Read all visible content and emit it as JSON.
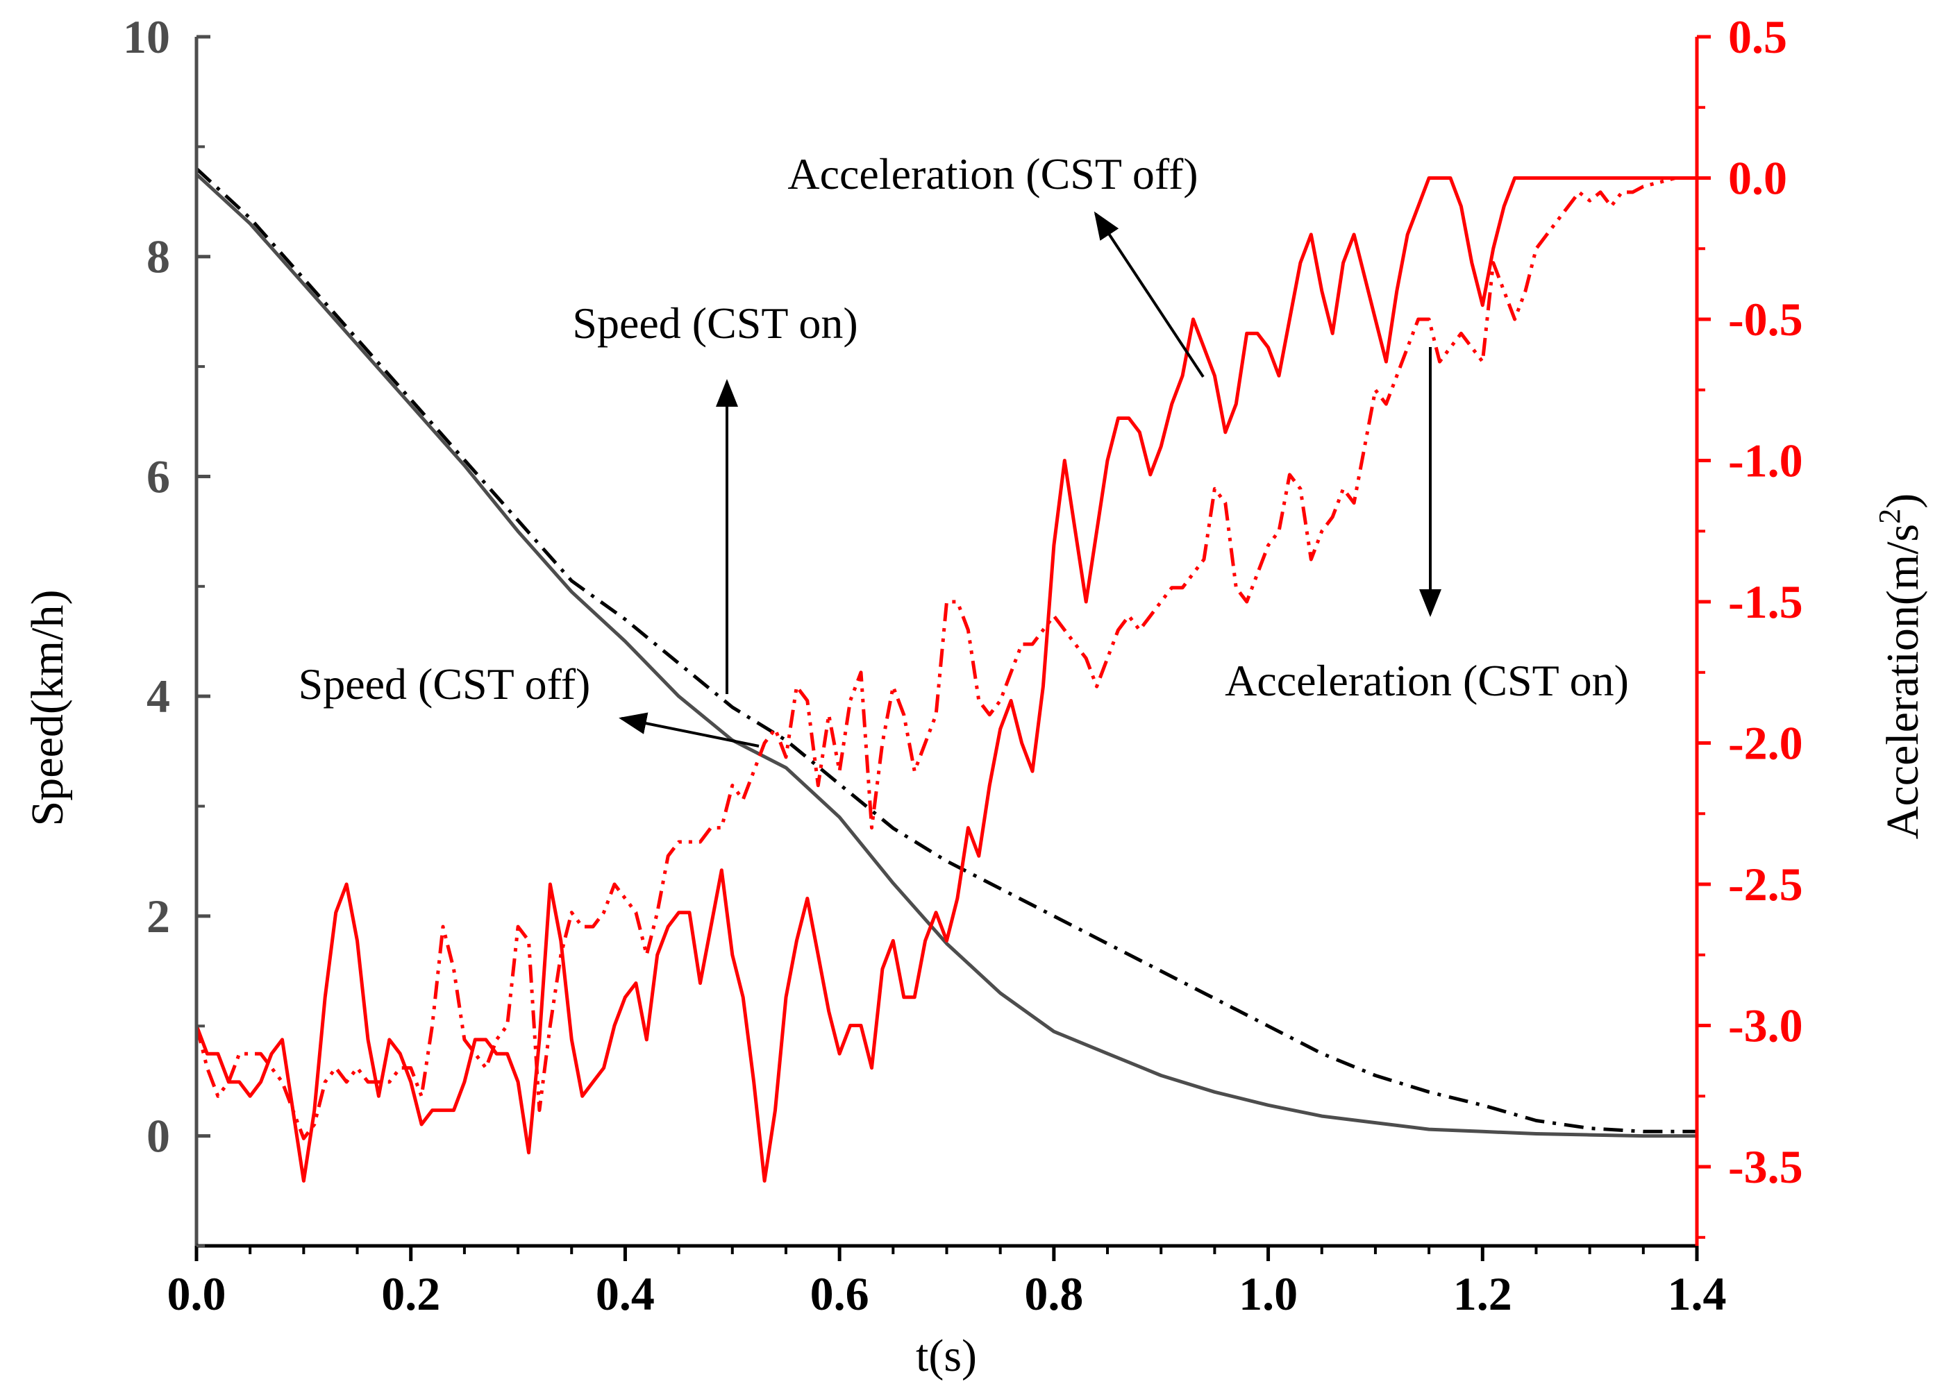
{
  "chart_data": {
    "type": "line",
    "xlabel": "t(s)",
    "ylabel_left": "Speed(km/h)",
    "ylabel_right": "Acceleration(m/s",
    "ylabel_right_sup": "2",
    "ylabel_right_close": ")",
    "xlim": [
      0,
      1.4
    ],
    "ylim_left": [
      -1,
      10
    ],
    "ylim_right": [
      -3.78,
      0.5
    ],
    "x_ticks": [
      "0.0",
      "0.2",
      "0.4",
      "0.6",
      "0.8",
      "1.0",
      "1.2",
      "1.4"
    ],
    "y_left_ticks": [
      "0",
      "2",
      "4",
      "6",
      "8",
      "10"
    ],
    "y_right_ticks": [
      "-3.5",
      "-3.0",
      "-2.5",
      "-2.0",
      "-1.5",
      "-1.0",
      "-0.5",
      "0.0",
      "0.5"
    ],
    "colors": {
      "speed_off": "#4d4d4d",
      "speed_on": "#000000",
      "acc": "#ff0000",
      "left_axis": "#4d4d4d",
      "right_axis": "#ff0000"
    },
    "series": [
      {
        "name": "Speed (CST off)",
        "axis": "left",
        "style": "solid",
        "color": "#4d4d4d",
        "x": [
          0,
          0.05,
          0.1,
          0.15,
          0.2,
          0.25,
          0.3,
          0.35,
          0.4,
          0.45,
          0.5,
          0.55,
          0.6,
          0.65,
          0.7,
          0.75,
          0.8,
          0.85,
          0.9,
          0.95,
          1.0,
          1.05,
          1.1,
          1.15,
          1.2,
          1.25,
          1.3,
          1.35,
          1.4
        ],
        "y": [
          8.75,
          8.3,
          7.75,
          7.2,
          6.65,
          6.1,
          5.5,
          4.95,
          4.5,
          4.0,
          3.6,
          3.35,
          2.9,
          2.3,
          1.75,
          1.3,
          0.95,
          0.75,
          0.55,
          0.4,
          0.28,
          0.18,
          0.12,
          0.06,
          0.04,
          0.02,
          0.01,
          0.0,
          0.0
        ]
      },
      {
        "name": "Speed (CST on)",
        "axis": "left",
        "style": "dashdot",
        "color": "#000000",
        "x": [
          0,
          0.05,
          0.1,
          0.15,
          0.2,
          0.25,
          0.3,
          0.35,
          0.4,
          0.45,
          0.5,
          0.55,
          0.6,
          0.65,
          0.7,
          0.75,
          0.8,
          0.85,
          0.9,
          0.95,
          1.0,
          1.05,
          1.1,
          1.15,
          1.2,
          1.25,
          1.3,
          1.35,
          1.4
        ],
        "y": [
          8.8,
          8.35,
          7.8,
          7.25,
          6.7,
          6.15,
          5.6,
          5.05,
          4.7,
          4.3,
          3.9,
          3.6,
          3.2,
          2.8,
          2.5,
          2.25,
          2.0,
          1.75,
          1.5,
          1.25,
          1.0,
          0.75,
          0.55,
          0.4,
          0.28,
          0.14,
          0.07,
          0.04,
          0.04
        ]
      },
      {
        "name": "Acceleration (CST off)",
        "axis": "right",
        "style": "solid",
        "color": "#ff0000",
        "x": [
          0,
          0.01,
          0.02,
          0.03,
          0.04,
          0.05,
          0.06,
          0.07,
          0.08,
          0.09,
          0.1,
          0.11,
          0.12,
          0.13,
          0.14,
          0.15,
          0.16,
          0.17,
          0.18,
          0.19,
          0.2,
          0.21,
          0.22,
          0.23,
          0.24,
          0.25,
          0.26,
          0.27,
          0.28,
          0.29,
          0.3,
          0.31,
          0.32,
          0.33,
          0.34,
          0.35,
          0.36,
          0.37,
          0.38,
          0.39,
          0.4,
          0.41,
          0.42,
          0.43,
          0.44,
          0.45,
          0.46,
          0.47,
          0.48,
          0.49,
          0.5,
          0.51,
          0.52,
          0.53,
          0.54,
          0.55,
          0.56,
          0.57,
          0.58,
          0.59,
          0.6,
          0.61,
          0.62,
          0.63,
          0.64,
          0.65,
          0.66,
          0.67,
          0.68,
          0.69,
          0.7,
          0.71,
          0.72,
          0.73,
          0.74,
          0.75,
          0.76,
          0.77,
          0.78,
          0.79,
          0.8,
          0.81,
          0.82,
          0.83,
          0.84,
          0.85,
          0.86,
          0.87,
          0.88,
          0.89,
          0.9,
          0.91,
          0.92,
          0.93,
          0.94,
          0.95,
          0.96,
          0.97,
          0.98,
          0.99,
          1.0,
          1.01,
          1.02,
          1.03,
          1.04,
          1.05,
          1.06,
          1.07,
          1.08,
          1.09,
          1.1,
          1.11,
          1.12,
          1.13,
          1.14,
          1.15,
          1.16,
          1.17,
          1.18,
          1.19,
          1.2,
          1.21,
          1.22,
          1.23,
          1.4
        ],
        "y": [
          -3.0,
          -3.1,
          -3.1,
          -3.2,
          -3.2,
          -3.25,
          -3.2,
          -3.1,
          -3.05,
          -3.3,
          -3.55,
          -3.3,
          -2.9,
          -2.6,
          -2.5,
          -2.7,
          -3.05,
          -3.25,
          -3.05,
          -3.1,
          -3.2,
          -3.35,
          -3.3,
          -3.3,
          -3.3,
          -3.2,
          -3.05,
          -3.05,
          -3.1,
          -3.1,
          -3.2,
          -3.45,
          -3.05,
          -2.5,
          -2.7,
          -3.05,
          -3.25,
          -3.2,
          -3.15,
          -3.0,
          -2.9,
          -2.85,
          -3.05,
          -2.75,
          -2.65,
          -2.6,
          -2.6,
          -2.85,
          -2.65,
          -2.45,
          -2.75,
          -2.9,
          -3.2,
          -3.55,
          -3.3,
          -2.9,
          -2.7,
          -2.55,
          -2.75,
          -2.95,
          -3.1,
          -3.0,
          -3.0,
          -3.15,
          -2.8,
          -2.7,
          -2.9,
          -2.9,
          -2.7,
          -2.6,
          -2.7,
          -2.55,
          -2.3,
          -2.4,
          -2.15,
          -1.95,
          -1.85,
          -2.0,
          -2.1,
          -1.8,
          -1.3,
          -1.0,
          -1.25,
          -1.5,
          -1.25,
          -1.0,
          -0.85,
          -0.85,
          -0.9,
          -1.05,
          -0.95,
          -0.8,
          -0.7,
          -0.5,
          -0.6,
          -0.7,
          -0.9,
          -0.8,
          -0.55,
          -0.55,
          -0.6,
          -0.7,
          -0.5,
          -0.3,
          -0.2,
          -0.4,
          -0.55,
          -0.3,
          -0.2,
          -0.35,
          -0.5,
          -0.65,
          -0.4,
          -0.2,
          -0.1,
          0.0,
          0.0,
          0.0,
          -0.1,
          -0.3,
          -0.45,
          -0.25,
          -0.1,
          0.0,
          0.0
        ]
      },
      {
        "name": "Acceleration (CST on)",
        "axis": "right",
        "style": "dashdotdot",
        "color": "#ff0000",
        "x": [
          0,
          0.01,
          0.02,
          0.03,
          0.04,
          0.05,
          0.06,
          0.07,
          0.08,
          0.09,
          0.1,
          0.11,
          0.12,
          0.13,
          0.14,
          0.15,
          0.16,
          0.17,
          0.18,
          0.19,
          0.2,
          0.21,
          0.22,
          0.23,
          0.24,
          0.25,
          0.26,
          0.27,
          0.28,
          0.29,
          0.3,
          0.31,
          0.32,
          0.33,
          0.34,
          0.35,
          0.36,
          0.37,
          0.38,
          0.39,
          0.4,
          0.41,
          0.42,
          0.43,
          0.44,
          0.45,
          0.46,
          0.47,
          0.48,
          0.49,
          0.5,
          0.51,
          0.52,
          0.53,
          0.54,
          0.55,
          0.56,
          0.57,
          0.58,
          0.59,
          0.6,
          0.61,
          0.62,
          0.63,
          0.64,
          0.65,
          0.66,
          0.67,
          0.68,
          0.69,
          0.7,
          0.71,
          0.72,
          0.73,
          0.74,
          0.75,
          0.76,
          0.77,
          0.78,
          0.79,
          0.8,
          0.81,
          0.82,
          0.83,
          0.84,
          0.85,
          0.86,
          0.87,
          0.88,
          0.89,
          0.9,
          0.91,
          0.92,
          0.93,
          0.94,
          0.95,
          0.96,
          0.97,
          0.98,
          0.99,
          1.0,
          1.01,
          1.02,
          1.03,
          1.04,
          1.05,
          1.06,
          1.07,
          1.08,
          1.09,
          1.1,
          1.11,
          1.12,
          1.13,
          1.14,
          1.15,
          1.16,
          1.17,
          1.18,
          1.19,
          1.2,
          1.21,
          1.22,
          1.23,
          1.24,
          1.25,
          1.26,
          1.27,
          1.28,
          1.29,
          1.3,
          1.31,
          1.32,
          1.33,
          1.34,
          1.35,
          1.36,
          1.37,
          1.38,
          1.4
        ],
        "y": [
          -3.0,
          -3.15,
          -3.25,
          -3.2,
          -3.1,
          -3.1,
          -3.1,
          -3.15,
          -3.2,
          -3.3,
          -3.4,
          -3.35,
          -3.2,
          -3.15,
          -3.2,
          -3.15,
          -3.2,
          -3.2,
          -3.2,
          -3.15,
          -3.15,
          -3.25,
          -3.0,
          -2.65,
          -2.8,
          -3.05,
          -3.1,
          -3.15,
          -3.05,
          -3.0,
          -2.65,
          -2.7,
          -3.3,
          -3.0,
          -2.75,
          -2.6,
          -2.65,
          -2.65,
          -2.6,
          -2.5,
          -2.55,
          -2.6,
          -2.75,
          -2.6,
          -2.4,
          -2.35,
          -2.35,
          -2.35,
          -2.3,
          -2.3,
          -2.15,
          -2.2,
          -2.1,
          -2.0,
          -1.95,
          -2.05,
          -1.8,
          -1.85,
          -2.15,
          -1.9,
          -2.1,
          -1.85,
          -1.75,
          -2.3,
          -2.0,
          -1.8,
          -1.9,
          -2.1,
          -2.0,
          -1.9,
          -1.5,
          -1.5,
          -1.6,
          -1.85,
          -1.9,
          -1.85,
          -1.75,
          -1.65,
          -1.65,
          -1.6,
          -1.55,
          -1.6,
          -1.65,
          -1.7,
          -1.8,
          -1.7,
          -1.6,
          -1.55,
          -1.6,
          -1.55,
          -1.5,
          -1.45,
          -1.45,
          -1.4,
          -1.35,
          -1.1,
          -1.15,
          -1.45,
          -1.5,
          -1.4,
          -1.3,
          -1.25,
          -1.05,
          -1.1,
          -1.35,
          -1.25,
          -1.2,
          -1.1,
          -1.15,
          -0.95,
          -0.75,
          -0.8,
          -0.7,
          -0.6,
          -0.5,
          -0.5,
          -0.65,
          -0.6,
          -0.55,
          -0.6,
          -0.65,
          -0.3,
          -0.4,
          -0.5,
          -0.4,
          -0.25,
          -0.2,
          -0.15,
          -0.1,
          -0.05,
          -0.08,
          -0.05,
          -0.1,
          -0.05,
          -0.05,
          -0.03,
          -0.02,
          -0.01,
          0.0,
          0.0
        ]
      }
    ],
    "annotations": [
      {
        "text": "Acceleration (CST off)",
        "target": "Acceleration (CST off)"
      },
      {
        "text": "Speed (CST on)",
        "target": "Speed (CST on)"
      },
      {
        "text": "Speed (CST off)",
        "target": "Speed (CST off)"
      },
      {
        "text": "Acceleration (CST on)",
        "target": "Acceleration (CST on)"
      }
    ]
  }
}
